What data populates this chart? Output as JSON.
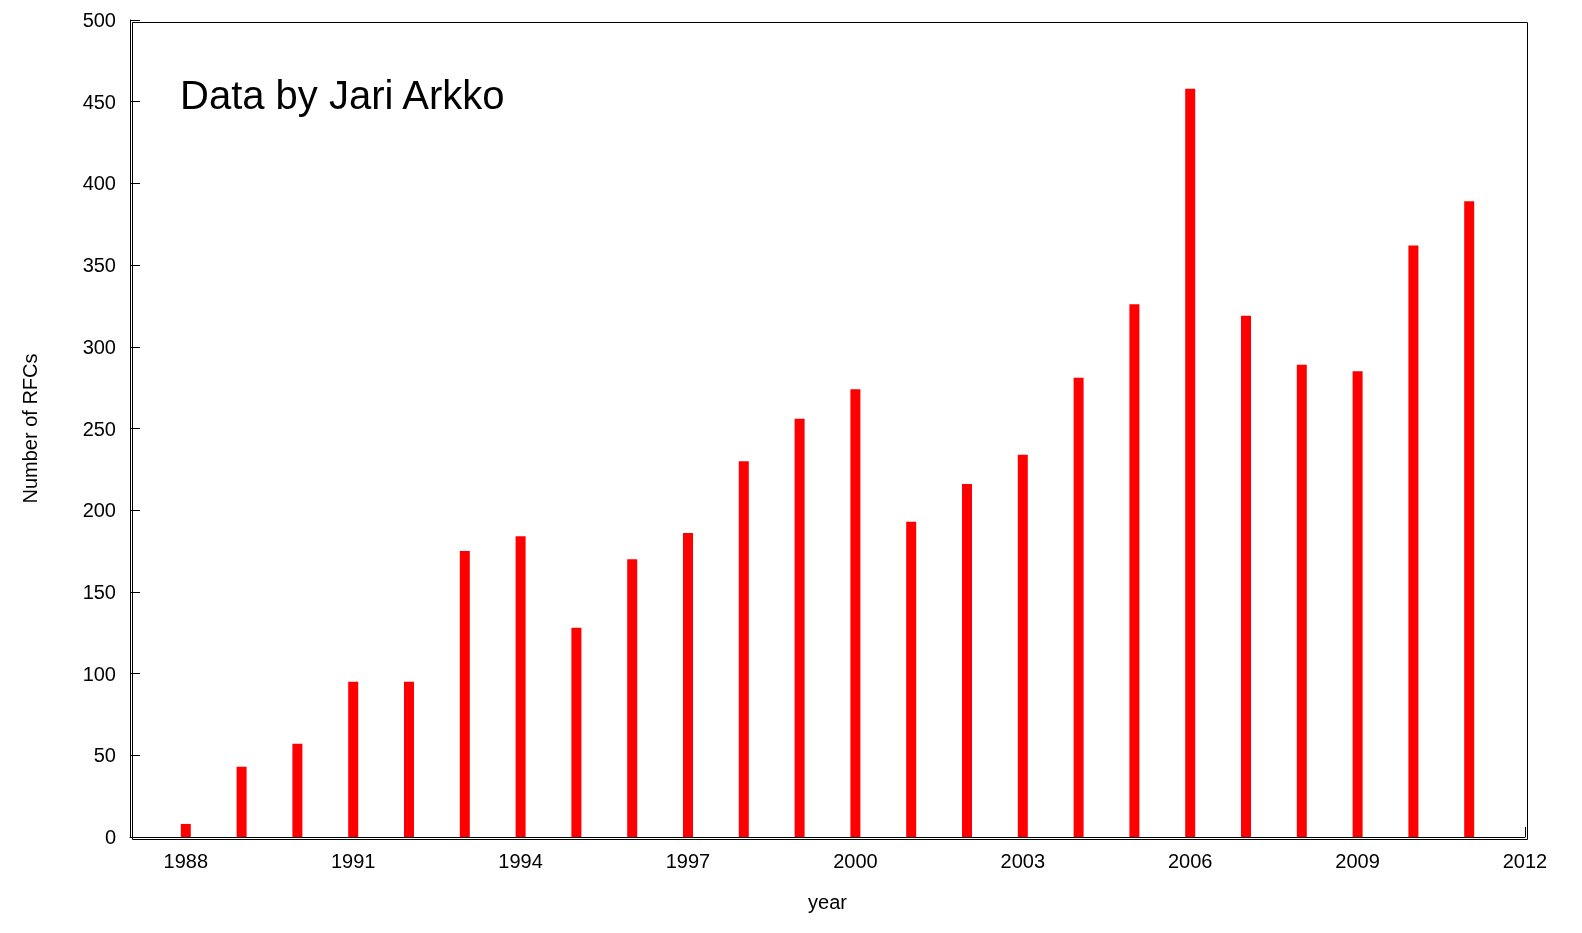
{
  "chart_data": {
    "type": "bar",
    "xlabel": "year",
    "ylabel": "Number of RFCs",
    "annotations": [
      "Data by Jari Arkko"
    ],
    "x": [
      1988,
      1989,
      1990,
      1991,
      1992,
      1993,
      1994,
      1995,
      1996,
      1997,
      1998,
      1999,
      2000,
      2001,
      2002,
      2003,
      2004,
      2005,
      2006,
      2007,
      2008,
      2009,
      2010,
      2011
    ],
    "values": [
      8,
      43,
      57,
      95,
      95,
      175,
      184,
      128,
      170,
      186,
      230,
      256,
      274,
      193,
      216,
      234,
      281,
      326,
      458,
      319,
      289,
      285,
      362,
      389
    ],
    "color": "#ff0000",
    "xlim": [
      1987,
      2012
    ],
    "xticks": [
      1988,
      1991,
      1994,
      1997,
      2000,
      2003,
      2006,
      2009,
      2012
    ],
    "ylim": [
      0,
      500
    ],
    "yticks": [
      0,
      50,
      100,
      150,
      200,
      250,
      300,
      350,
      400,
      450,
      500
    ]
  }
}
